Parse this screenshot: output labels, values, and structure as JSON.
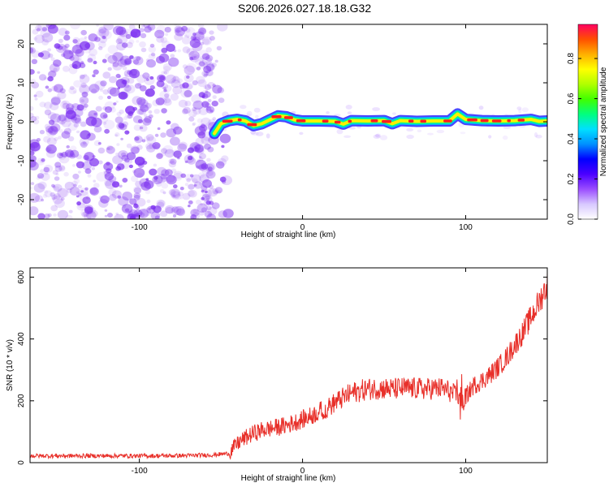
{
  "figure": {
    "title": "S206.2026.027.18.18.G32"
  },
  "colors": {
    "snr_line": "#e8302a",
    "axis": "#000000",
    "noise_purple": "#7a2cf0",
    "background": "#ffffff"
  },
  "chart_data": [
    {
      "type": "heatmap",
      "title": "S206.2026.027.18.18.G32",
      "xlabel": "Height of straight line (km)",
      "ylabel": "Frequency (Hz)",
      "xlim": [
        -167,
        150
      ],
      "ylim": [
        -25,
        25
      ],
      "x_ticks": [
        -100,
        0,
        100
      ],
      "x_tick_labels": [
        "-100",
        "0",
        "100"
      ],
      "y_ticks": [
        -20,
        -10,
        0,
        10,
        20
      ],
      "y_tick_labels": [
        "-20",
        "-10",
        "0",
        "10",
        "20"
      ],
      "noise_region_x": [
        -167,
        -50
      ],
      "signal_start_km": -54,
      "ridge": {
        "x": [
          -54,
          -50,
          -45,
          -40,
          -35,
          -30,
          -25,
          -20,
          -15,
          -10,
          -5,
          0,
          10,
          20,
          25,
          30,
          40,
          50,
          55,
          60,
          70,
          80,
          90,
          95,
          100,
          110,
          120,
          130,
          140,
          145,
          150
        ],
        "freq": [
          -3,
          -0.5,
          0.3,
          0.6,
          0.2,
          -1,
          -0.5,
          0.5,
          1.5,
          1.3,
          0.5,
          0.2,
          0.2,
          0.1,
          -0.6,
          0.3,
          0.2,
          0.3,
          -0.5,
          0.3,
          0.1,
          0.2,
          0.2,
          2.0,
          0.6,
          0.3,
          0.2,
          0.3,
          0.6,
          0.1,
          0.2
        ]
      },
      "colorbar": {
        "label": "Normalized spectral amplitude",
        "range": [
          0,
          0.97
        ],
        "ticks": [
          0,
          0.2,
          0.4,
          0.6,
          0.8
        ],
        "tick_labels": [
          "0.0",
          "0.2",
          "0.4",
          "0.6",
          "0.8"
        ],
        "colormap": [
          "#ffffff",
          "#d8c8ff",
          "#9a4dff",
          "#4b00ff",
          "#0000ff",
          "#0090ff",
          "#00e0ff",
          "#00ff80",
          "#40ff00",
          "#b0ff00",
          "#ffff00",
          "#ffb000",
          "#ff5000",
          "#ff0060"
        ]
      }
    },
    {
      "type": "line",
      "title": "",
      "xlabel": "Height of straight line (km)",
      "ylabel": "SNR (10 * v/v)",
      "xlim": [
        -167,
        150
      ],
      "ylim": [
        0,
        630
      ],
      "x_ticks": [
        -100,
        0,
        100
      ],
      "x_tick_labels": [
        "-100",
        "0",
        "100"
      ],
      "y_ticks": [
        0,
        200,
        400,
        600
      ],
      "y_tick_labels": [
        "0",
        "200",
        "400",
        "600"
      ],
      "series": [
        {
          "name": "SNR",
          "x": [
            -167,
            -150,
            -130,
            -110,
            -90,
            -70,
            -55,
            -45,
            -42,
            -38,
            -35,
            -30,
            -25,
            -20,
            -15,
            -10,
            -5,
            0,
            5,
            10,
            12,
            15,
            20,
            25,
            30,
            35,
            40,
            45,
            50,
            55,
            60,
            65,
            70,
            75,
            80,
            85,
            90,
            95,
            98,
            100,
            105,
            110,
            115,
            120,
            125,
            130,
            135,
            140,
            145,
            150
          ],
          "values": [
            22,
            22,
            22,
            22,
            22,
            23,
            25,
            30,
            50,
            70,
            80,
            95,
            105,
            110,
            115,
            120,
            130,
            140,
            150,
            165,
            170,
            175,
            195,
            210,
            225,
            232,
            238,
            240,
            240,
            238,
            240,
            240,
            240,
            238,
            240,
            240,
            232,
            210,
            195,
            215,
            250,
            265,
            285,
            310,
            340,
            380,
            420,
            470,
            520,
            575
          ]
        }
      ]
    }
  ]
}
